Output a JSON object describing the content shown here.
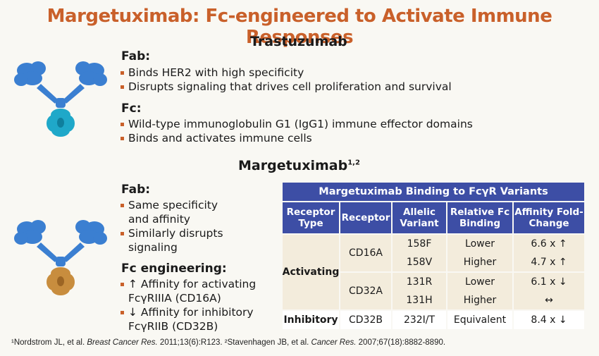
{
  "title": "Margetuximab: Fc-engineered to Activate Immune Responses",
  "trastuzumab": {
    "heading": "Trastuzumab",
    "fab_heading": "Fab:",
    "fab_items": [
      "Binds HER2 with high specificity",
      "Disrupts signaling that drives cell proliferation and survival"
    ],
    "fc_heading": "Fc:",
    "fc_items": [
      "Wild-type immunoglobulin G1 (IgG1) immune effector domains",
      "Binds and activates immune cells"
    ]
  },
  "margetuximab": {
    "heading": "Margetuximab",
    "heading_sup": "1,2",
    "fab_heading": "Fab:",
    "fab_items": [
      "Same specificity and affinity",
      "Similarly disrupts signaling"
    ],
    "fc_heading": "Fc engineering:",
    "fc_items": [
      "↑ Affinity for activating FcγRIIIA (CD16A)",
      "↓ Affinity for inhibitory FcγRIIB (CD32B)"
    ]
  },
  "table": {
    "title": "Margetuximab Binding to FcγR Variants",
    "headers": [
      "Receptor Type",
      "Receptor",
      "Allelic Variant",
      "Relative Fc Binding",
      "Affinity Fold-Change"
    ],
    "groups": {
      "activating": "Activating",
      "inhibitory": "Inhibitory"
    },
    "receptors": [
      "CD16A",
      "CD32A",
      "CD32B"
    ],
    "rows": [
      {
        "variant": "158F",
        "binding": "Lower",
        "fold": "6.6 x ↑"
      },
      {
        "variant": "158V",
        "binding": "Higher",
        "fold": "4.7 x ↑"
      },
      {
        "variant": "131R",
        "binding": "Lower",
        "fold": "6.1 x ↓"
      },
      {
        "variant": "131H",
        "binding": "Higher",
        "fold": "↔"
      },
      {
        "variant": "232I/T",
        "binding": "Equivalent",
        "fold": "8.4 x ↓"
      }
    ]
  },
  "footnote": {
    "ref1_author": "¹Nordstrom JL, et al. ",
    "ref1_journal": "Breast Cancer Res.",
    "ref1_rest": " 2011;13(6):R123. ²Stavenhagen JB, et al. ",
    "ref2_journal": "Cancer Res.",
    "ref2_rest": " 2007;67(18):8882-8890."
  },
  "colors": {
    "accent": "#c9602a",
    "table_header": "#3d4ea5",
    "fab_blue": "#3b7fd1",
    "fc_teal": "#1fa8c9",
    "fc_orange": "#c88d3e"
  }
}
